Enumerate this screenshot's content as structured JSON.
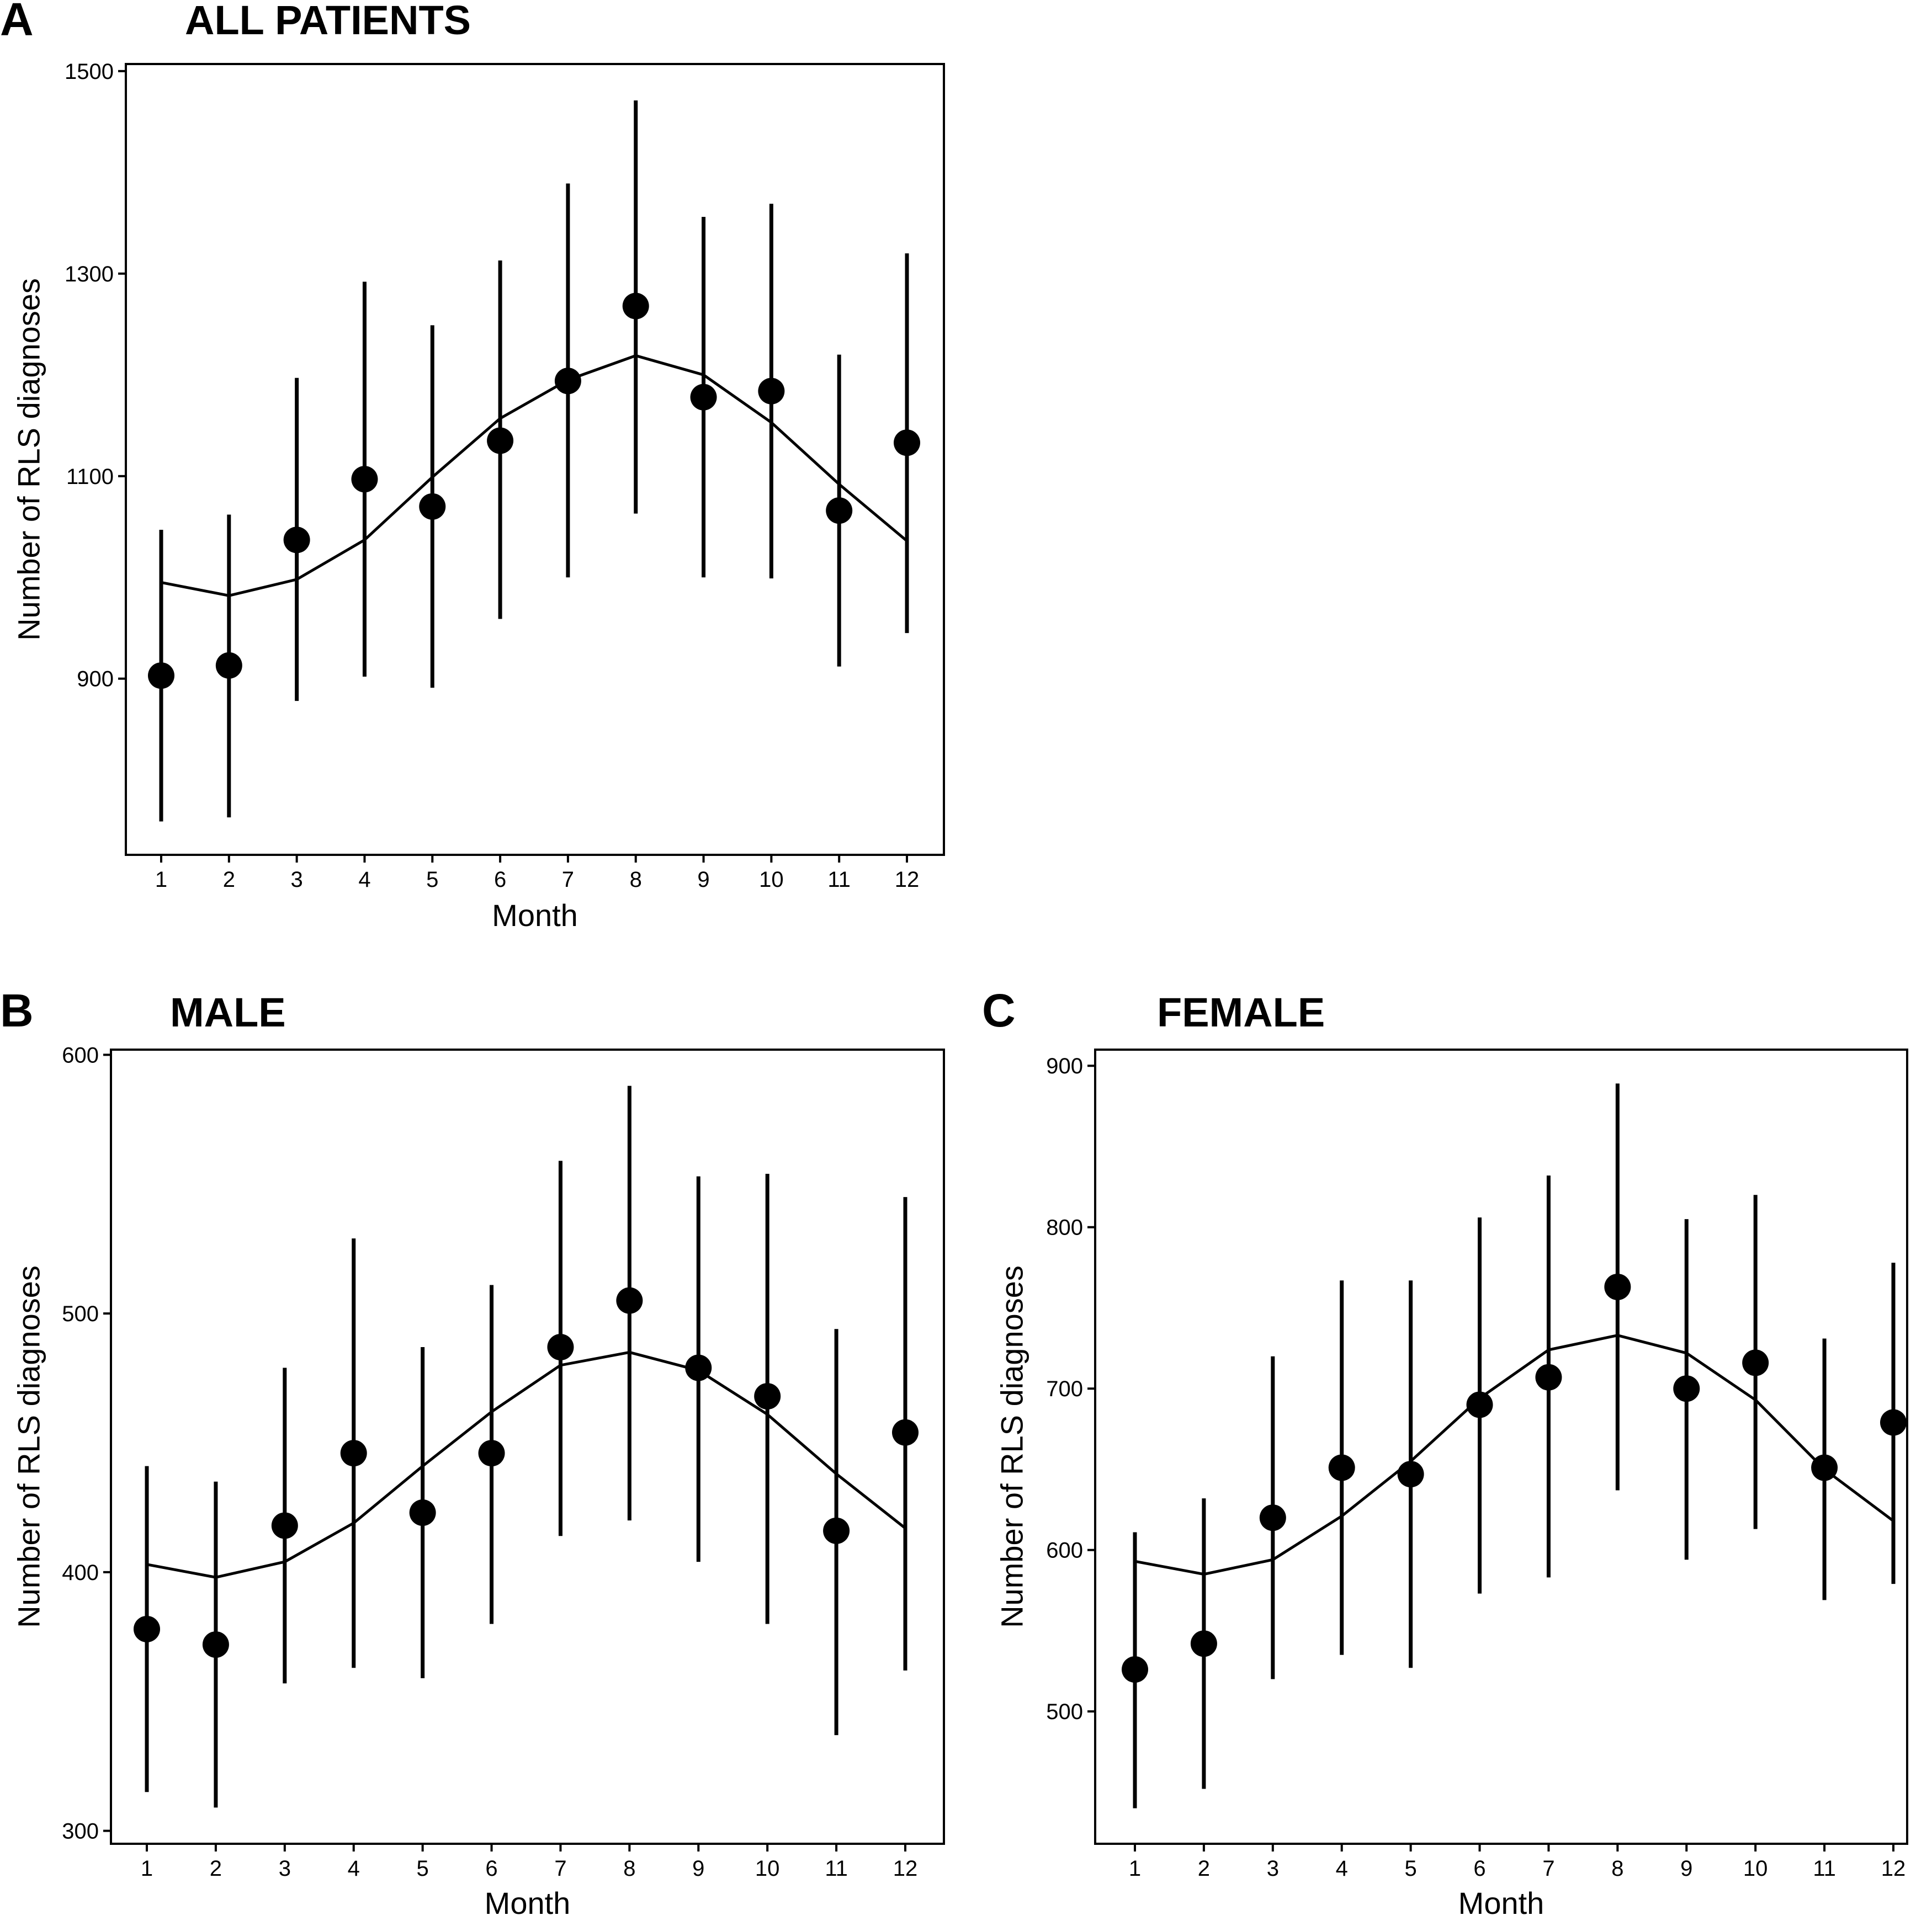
{
  "chart_data": [
    {
      "type": "scatter",
      "letter": "A",
      "title": "ALL PATIENTS",
      "xlabel": "Month",
      "ylabel": "Number of RLS diagnoses",
      "ylim": [
        726,
        1507
      ],
      "yticks": [
        900,
        1100,
        1300,
        1500
      ],
      "x": [
        1,
        2,
        3,
        4,
        5,
        6,
        7,
        8,
        9,
        10,
        11,
        12
      ],
      "points": [
        903,
        913,
        1037,
        1097,
        1070,
        1135,
        1194,
        1268,
        1178,
        1184,
        1066,
        1133
      ],
      "err_low": [
        759,
        763,
        878,
        902,
        891,
        959,
        1000,
        1063,
        1000,
        999,
        912,
        945
      ],
      "err_high": [
        1047,
        1062,
        1197,
        1292,
        1249,
        1313,
        1389,
        1471,
        1356,
        1369,
        1220,
        1320
      ],
      "fit_line": [
        995,
        982,
        998,
        1037,
        1099,
        1157,
        1195,
        1219,
        1200,
        1153,
        1092,
        1036
      ],
      "grid": false
    },
    {
      "type": "scatter",
      "letter": "B",
      "title": "MALE",
      "xlabel": "Month",
      "ylabel": "Number of RLS diagnoses",
      "ylim": [
        295,
        602
      ],
      "yticks": [
        300,
        400,
        500,
        600
      ],
      "x": [
        1,
        2,
        3,
        4,
        5,
        6,
        7,
        8,
        9,
        10,
        11,
        12
      ],
      "points": [
        378,
        372,
        418,
        446,
        423,
        446,
        487,
        505,
        479,
        468,
        416,
        454
      ],
      "err_low": [
        315,
        309,
        357,
        363,
        359,
        380,
        414,
        420,
        404,
        380,
        337,
        362
      ],
      "err_high": [
        441,
        435,
        479,
        529,
        487,
        511,
        559,
        588,
        553,
        554,
        494,
        545
      ],
      "fit_line": [
        403,
        398,
        404,
        419,
        441,
        462,
        480,
        485,
        478,
        461,
        438,
        417
      ],
      "grid": false
    },
    {
      "type": "scatter",
      "letter": "C",
      "title": "FEMALE",
      "xlabel": "Month",
      "ylabel": "Number of RLS diagnoses",
      "ylim": [
        418,
        910
      ],
      "yticks": [
        500,
        600,
        700,
        800,
        900
      ],
      "x": [
        1,
        2,
        3,
        4,
        5,
        6,
        7,
        8,
        9,
        10,
        11,
        12
      ],
      "points": [
        526,
        542,
        620,
        651,
        647,
        690,
        707,
        763,
        700,
        716,
        651,
        679
      ],
      "err_low": [
        440,
        452,
        520,
        535,
        527,
        573,
        583,
        637,
        594,
        613,
        569,
        579
      ],
      "err_high": [
        611,
        632,
        720,
        767,
        767,
        806,
        832,
        889,
        805,
        820,
        731,
        778
      ],
      "fit_line": [
        593,
        585,
        594,
        621,
        655,
        694,
        724,
        733,
        722,
        693,
        650,
        618
      ],
      "grid": false
    }
  ]
}
